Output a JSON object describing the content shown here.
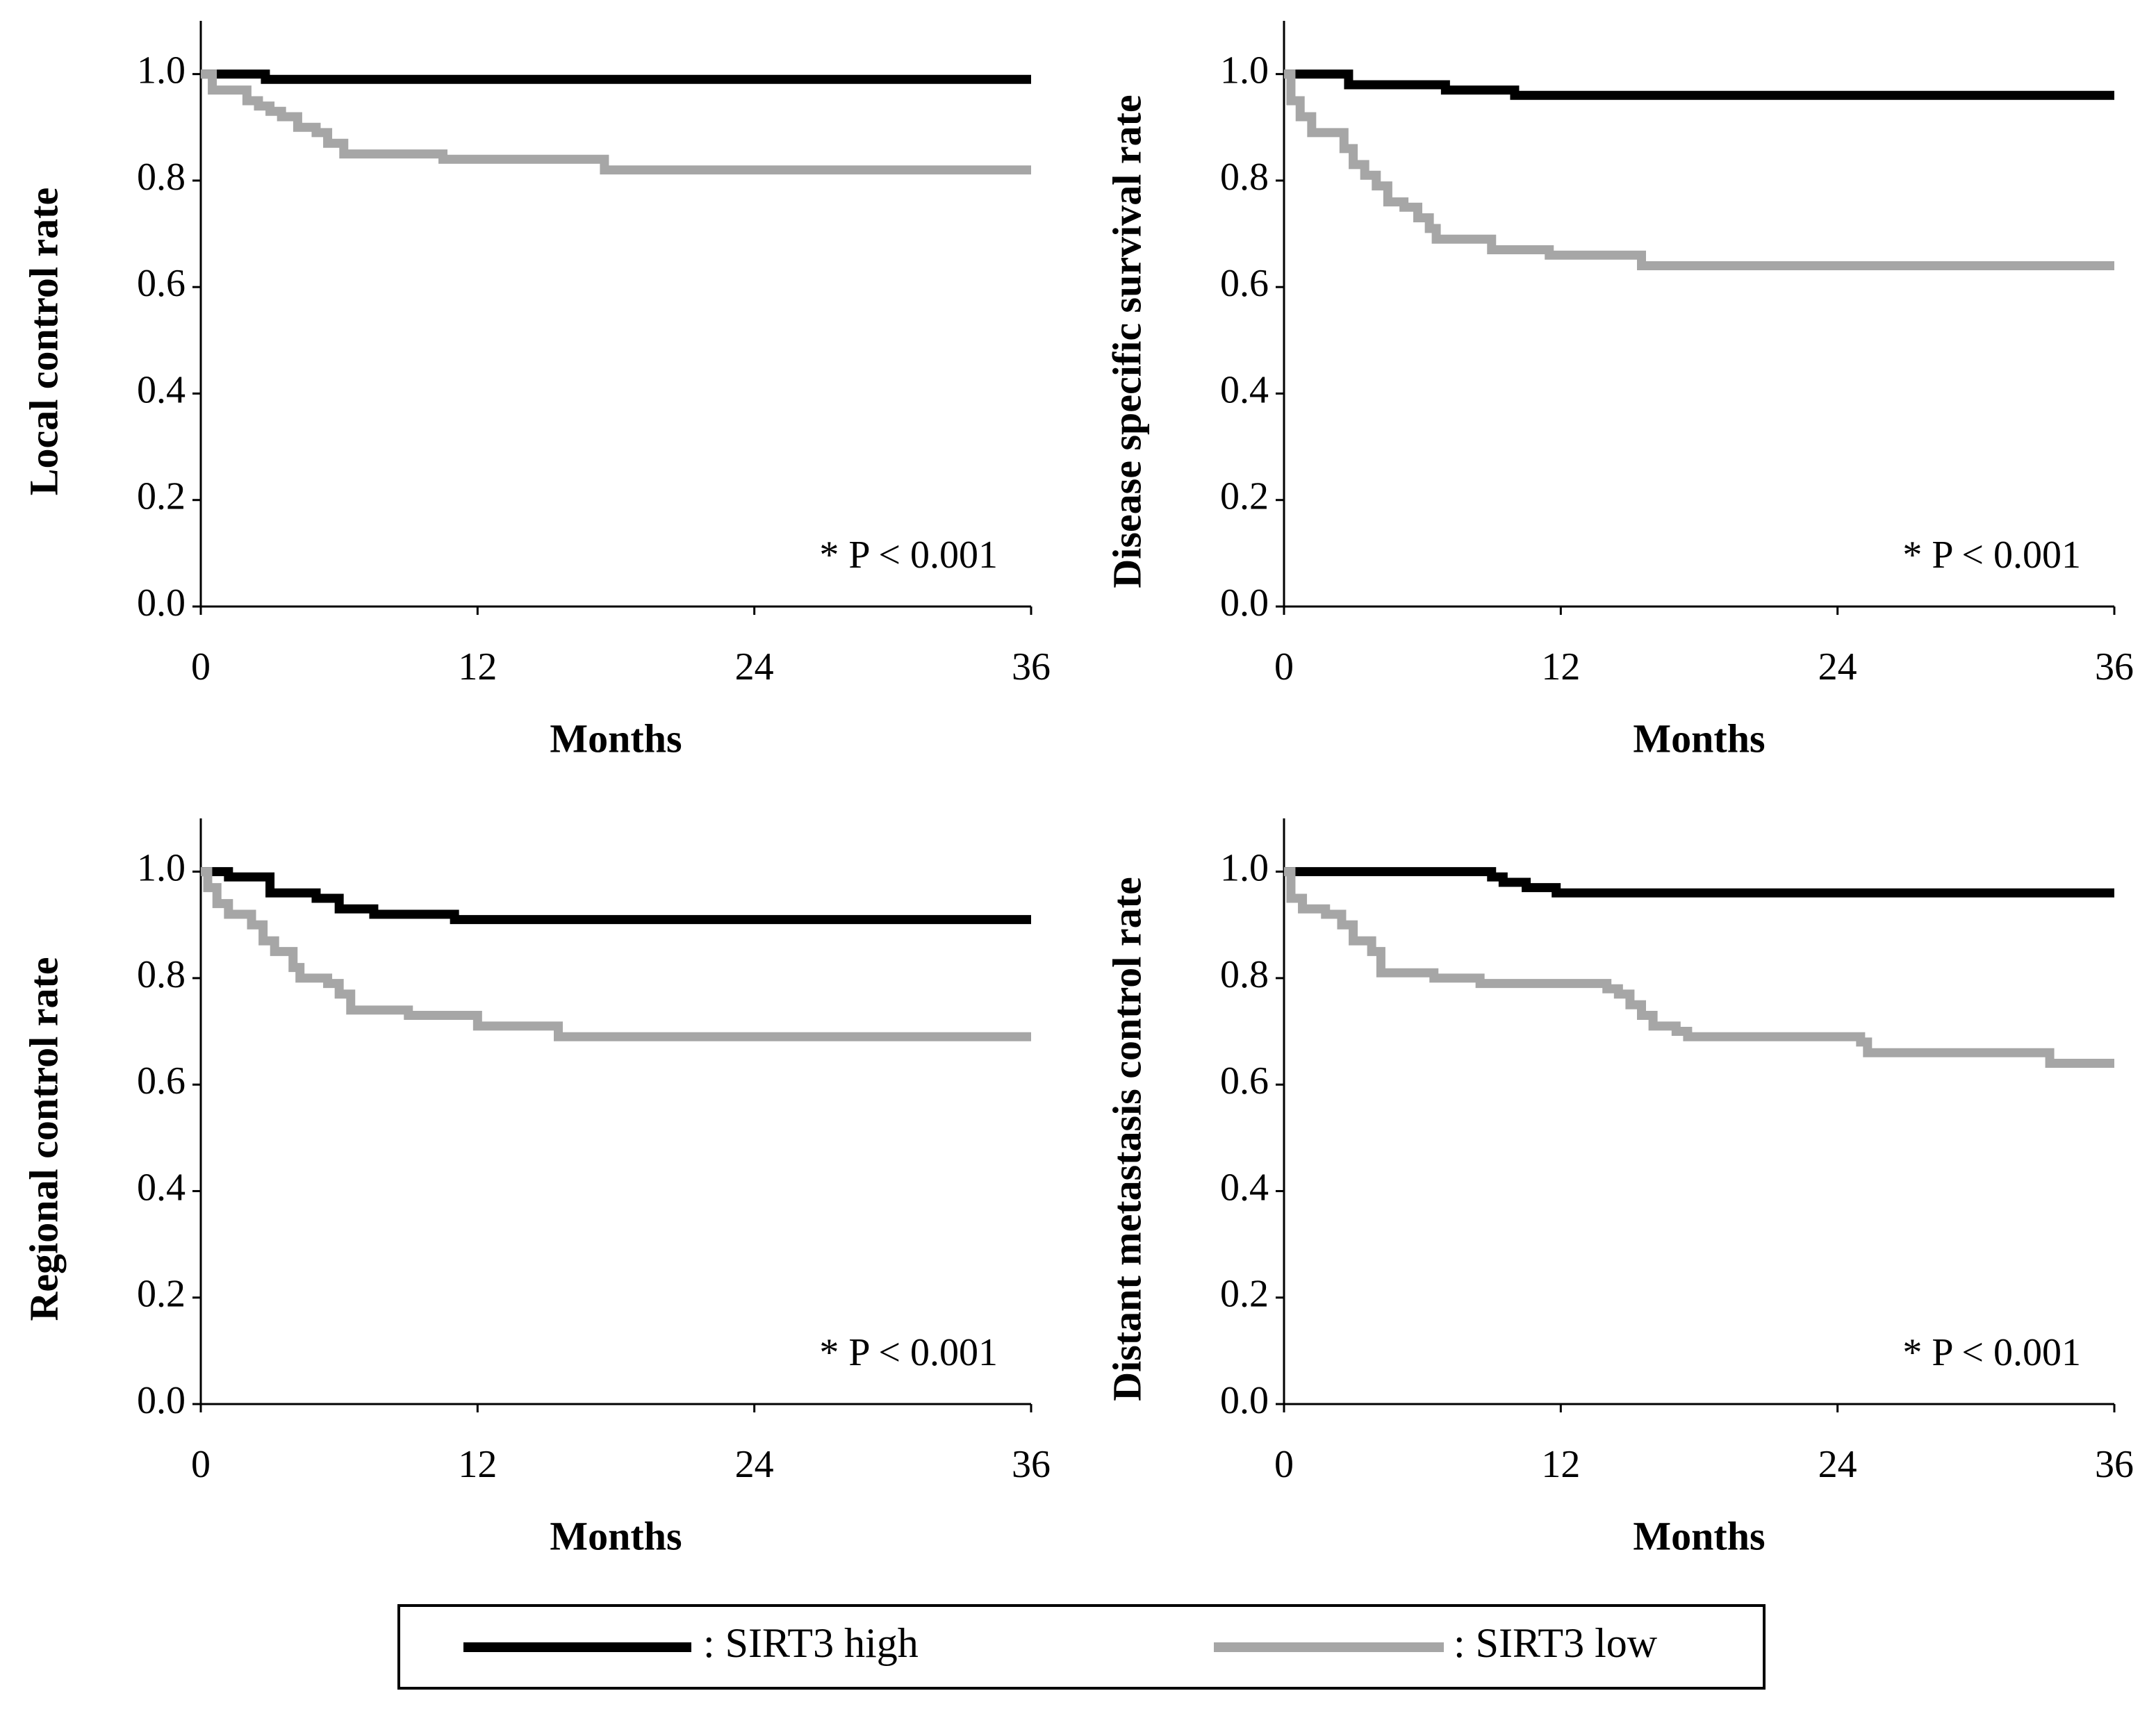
{
  "chart_data": [
    {
      "type": "step",
      "ylabel": "Local control rate",
      "xlabel": "Months",
      "annotation": "* P < 0.001",
      "xlim": [
        0,
        36
      ],
      "xticks": [
        0,
        12,
        24,
        36
      ],
      "ylim": [
        0,
        1.1
      ],
      "yticks": [
        {
          "value": 0,
          "label": "0.0"
        },
        0.2,
        0.4,
        0.6,
        0.8,
        {
          "value": 1,
          "label": "1.0"
        }
      ],
      "series": [
        {
          "name": ": SIRT3 high",
          "color": "#000000",
          "x": [
            0,
            2.8,
            36
          ],
          "values": [
            1.0,
            0.99,
            0.99
          ]
        },
        {
          "name": ": SIRT3 low",
          "color": "#a6a6a6",
          "x": [
            0,
            0.5,
            2.0,
            2.5,
            3.0,
            3.5,
            4.2,
            5.0,
            5.5,
            6.2,
            10.5,
            17.5,
            36
          ],
          "values": [
            1.0,
            0.97,
            0.95,
            0.94,
            0.93,
            0.92,
            0.9,
            0.89,
            0.87,
            0.85,
            0.84,
            0.82,
            0.82
          ]
        }
      ]
    },
    {
      "type": "step",
      "ylabel": "Disease specific survival rate",
      "xlabel": "Months",
      "annotation": "* P < 0.001",
      "xlim": [
        0,
        36
      ],
      "xticks": [
        0,
        12,
        24,
        36
      ],
      "ylim": [
        0,
        1.1
      ],
      "yticks": [
        {
          "value": 0,
          "label": "0.0"
        },
        0.2,
        0.4,
        0.6,
        0.8,
        {
          "value": 1,
          "label": "1.0"
        }
      ],
      "series": [
        {
          "name": ": SIRT3 high",
          "color": "#000000",
          "x": [
            0,
            2.8,
            7,
            10,
            36
          ],
          "values": [
            1.0,
            0.98,
            0.97,
            0.96,
            0.96
          ]
        },
        {
          "name": ": SIRT3 low",
          "color": "#a6a6a6",
          "x": [
            0,
            0.3,
            0.7,
            1.2,
            2.6,
            3.0,
            3.5,
            4.0,
            4.5,
            5.2,
            5.8,
            6.3,
            6.6,
            9.0,
            11.5,
            15.5,
            36
          ],
          "values": [
            1.0,
            0.95,
            0.92,
            0.89,
            0.86,
            0.83,
            0.81,
            0.79,
            0.76,
            0.75,
            0.73,
            0.71,
            0.69,
            0.67,
            0.66,
            0.64,
            0.64
          ]
        }
      ]
    },
    {
      "type": "step",
      "ylabel": "Regional control rate",
      "xlabel": "Months",
      "annotation": "* P < 0.001",
      "xlim": [
        0,
        36
      ],
      "xticks": [
        0,
        12,
        24,
        36
      ],
      "ylim": [
        0,
        1.1
      ],
      "yticks": [
        {
          "value": 0,
          "label": "0.0"
        },
        0.2,
        0.4,
        0.6,
        0.8,
        {
          "value": 1,
          "label": "1.0"
        }
      ],
      "series": [
        {
          "name": ": SIRT3 high",
          "color": "#000000",
          "x": [
            0,
            1.2,
            3.0,
            5.0,
            6.0,
            7.5,
            11.0,
            36
          ],
          "values": [
            1.0,
            0.99,
            0.96,
            0.95,
            0.93,
            0.92,
            0.91,
            0.91
          ]
        },
        {
          "name": ": SIRT3 low",
          "color": "#a6a6a6",
          "x": [
            0,
            0.3,
            0.7,
            1.2,
            2.2,
            2.7,
            3.2,
            4.0,
            4.3,
            5.5,
            6.0,
            6.5,
            9.0,
            12.0,
            15.5,
            36
          ],
          "values": [
            1.0,
            0.97,
            0.94,
            0.92,
            0.9,
            0.87,
            0.85,
            0.82,
            0.8,
            0.79,
            0.77,
            0.74,
            0.73,
            0.71,
            0.69,
            0.69
          ]
        }
      ]
    },
    {
      "type": "step",
      "ylabel": "Distant metastasis control rate",
      "xlabel": "Months",
      "annotation": "* P < 0.001",
      "xlim": [
        0,
        36
      ],
      "xticks": [
        0,
        12,
        24,
        36
      ],
      "ylim": [
        0,
        1.1
      ],
      "yticks": [
        {
          "value": 0,
          "label": "0.0"
        },
        0.2,
        0.4,
        0.6,
        0.8,
        {
          "value": 1,
          "label": "1.0"
        }
      ],
      "series": [
        {
          "name": ": SIRT3 high",
          "color": "#000000",
          "x": [
            0,
            9.0,
            9.5,
            10.5,
            11.8,
            36
          ],
          "values": [
            1.0,
            0.99,
            0.98,
            0.97,
            0.96,
            0.96
          ]
        },
        {
          "name": ": SIRT3 low",
          "color": "#a6a6a6",
          "x": [
            0,
            0.3,
            0.8,
            1.8,
            2.5,
            3.0,
            3.8,
            4.2,
            6.5,
            8.5,
            14.0,
            14.5,
            15.0,
            15.5,
            16.0,
            17.0,
            17.5,
            25.0,
            25.3,
            33.2,
            36
          ],
          "values": [
            1.0,
            0.95,
            0.93,
            0.92,
            0.9,
            0.87,
            0.85,
            0.81,
            0.8,
            0.79,
            0.78,
            0.77,
            0.75,
            0.73,
            0.71,
            0.7,
            0.69,
            0.68,
            0.66,
            0.64,
            0.64
          ]
        }
      ]
    }
  ]
}
